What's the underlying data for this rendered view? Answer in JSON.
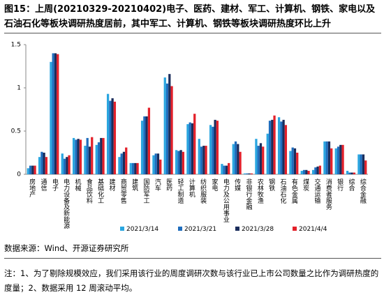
{
  "chart_data": {
    "type": "bar",
    "title": "图15：上周(20210329-20210402)电子、医药、建材、军工、计算机、钢铁、家电以及石油石化等板块调研热度居前，其中军工、计算机、钢铁等板块调研热度环比上升",
    "categories": [
      "房地产",
      "通信",
      "电子",
      "电力设备及新能源",
      "机械",
      "食品饮料",
      "基础化工",
      "建材",
      "商贸零售",
      "建筑",
      "国防军工",
      "汽车",
      "医药",
      "轻工制造",
      "计算机",
      "纺织服装",
      "家电",
      "电力及公用事业",
      "传媒",
      "非银行金融",
      "农林牧渔",
      "钢铁",
      "石油石化",
      "有色金属",
      "煤炭",
      "交通运输",
      "消费者服务",
      "银行",
      "综合",
      "综合金融"
    ],
    "series": [
      {
        "name": "2021/3/14",
        "color": "#2aa6e0",
        "values": [
          0.07,
          0.2,
          1.3,
          0.24,
          0.42,
          0.33,
          0.34,
          0.93,
          0.2,
          0.13,
          0.62,
          0.22,
          1.12,
          0.28,
          0.58,
          0.41,
          0.57,
          0.12,
          0.35,
          0.01,
          0.41,
          0.47,
          0.66,
          0.27,
          0.04,
          0.05,
          0.38,
          0.3,
          0.04,
          0.23
        ]
      },
      {
        "name": "2021/3/21",
        "color": "#1f6dbd",
        "values": [
          0.1,
          0.26,
          1.4,
          0.18,
          0.4,
          0.42,
          0.37,
          0.85,
          0.24,
          0.13,
          0.67,
          0.24,
          1.05,
          0.27,
          0.6,
          0.32,
          0.55,
          0.1,
          0.38,
          0.01,
          0.33,
          0.62,
          0.61,
          0.31,
          0.05,
          0.08,
          0.38,
          0.32,
          0.02,
          0.23
        ]
      },
      {
        "name": "2021/3/28",
        "color": "#1b2d5c",
        "values": [
          0.1,
          0.25,
          1.4,
          0.2,
          0.41,
          0.32,
          0.42,
          0.88,
          0.26,
          0.13,
          0.67,
          0.24,
          1.16,
          0.28,
          0.59,
          0.33,
          0.63,
          0.1,
          0.35,
          0.01,
          0.36,
          0.63,
          0.63,
          0.3,
          0.05,
          0.09,
          0.38,
          0.34,
          0.02,
          0.23
        ]
      },
      {
        "name": "2021/4/4",
        "color": "#e3202a",
        "values": [
          0.1,
          0.2,
          1.39,
          0.22,
          0.4,
          0.43,
          0.42,
          0.84,
          0.31,
          0.13,
          0.77,
          0.17,
          1.02,
          0.26,
          0.7,
          0.33,
          0.62,
          0.13,
          0.26,
          0.01,
          0.32,
          0.68,
          0.57,
          0.25,
          0.04,
          0.1,
          0.3,
          0.34,
          0.02,
          0.16
        ]
      }
    ],
    "ylim": [
      0,
      1.5
    ],
    "yticks": [
      0,
      0.5,
      1,
      1.5
    ],
    "grid": false,
    "source": "数据来源：Wind、开源证券研究所",
    "note": "注：1、为了剔除规模效应，我们采用该行业的周度调研次数与该行业已上市公司数量之比作为调研热度的度量；2、数据采用 12 周滚动平均。"
  }
}
